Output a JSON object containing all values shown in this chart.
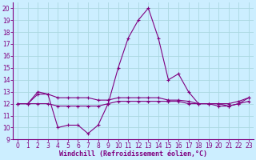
{
  "x": [
    0,
    1,
    2,
    3,
    4,
    5,
    6,
    7,
    8,
    9,
    10,
    11,
    12,
    13,
    14,
    15,
    16,
    17,
    18,
    19,
    20,
    21,
    22,
    23
  ],
  "line1": [
    12.0,
    12.0,
    13.0,
    12.8,
    10.0,
    10.2,
    10.2,
    9.5,
    10.2,
    12.0,
    15.0,
    17.5,
    19.0,
    20.0,
    17.5,
    14.0,
    14.5,
    13.0,
    12.0,
    12.0,
    12.0,
    11.8,
    12.0,
    12.5
  ],
  "line2": [
    12.0,
    12.0,
    12.8,
    12.8,
    12.5,
    12.5,
    12.5,
    12.5,
    12.3,
    12.3,
    12.5,
    12.5,
    12.5,
    12.5,
    12.5,
    12.3,
    12.3,
    12.2,
    12.0,
    12.0,
    12.0,
    12.0,
    12.2,
    12.5
  ],
  "line3": [
    12.0,
    12.0,
    12.0,
    12.0,
    11.8,
    11.8,
    11.8,
    11.8,
    11.8,
    12.0,
    12.2,
    12.2,
    12.2,
    12.2,
    12.2,
    12.2,
    12.2,
    12.0,
    12.0,
    12.0,
    11.8,
    11.8,
    12.0,
    12.2
  ],
  "line_color": "#800080",
  "bg_color": "#cceeff",
  "grid_color": "#aad8e0",
  "xlabel": "Windchill (Refroidissement éolien,°C)",
  "ylim": [
    9,
    20.5
  ],
  "xlim": [
    -0.5,
    23.5
  ],
  "yticks": [
    9,
    10,
    11,
    12,
    13,
    14,
    15,
    16,
    17,
    18,
    19,
    20
  ],
  "xticks": [
    0,
    1,
    2,
    3,
    4,
    5,
    6,
    7,
    8,
    9,
    10,
    11,
    12,
    13,
    14,
    15,
    16,
    17,
    18,
    19,
    20,
    21,
    22,
    23
  ],
  "tick_fontsize": 5.5,
  "xlabel_fontsize": 6.0
}
